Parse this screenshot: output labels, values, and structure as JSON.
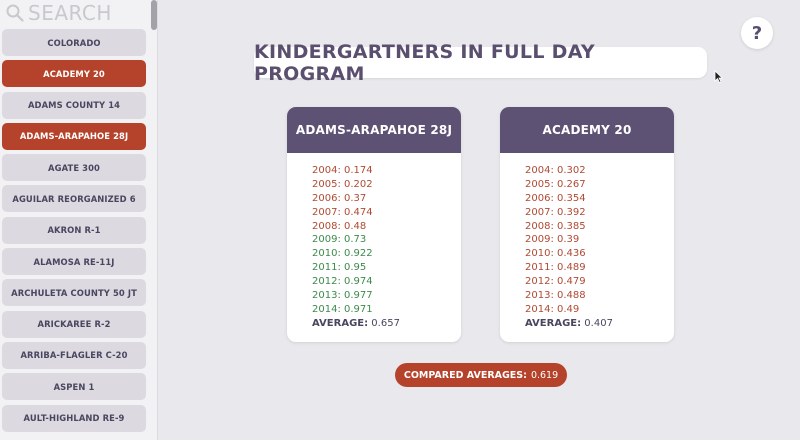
{
  "search": {
    "placeholder": "SEARCH"
  },
  "sidebar": {
    "items": [
      {
        "label": "COLORADO",
        "selected": false
      },
      {
        "label": "ACADEMY 20",
        "selected": true
      },
      {
        "label": "ADAMS COUNTY 14",
        "selected": false
      },
      {
        "label": "ADAMS-ARAPAHOE 28J",
        "selected": true
      },
      {
        "label": "AGATE 300",
        "selected": false
      },
      {
        "label": "AGUILAR REORGANIZED 6",
        "selected": false
      },
      {
        "label": "AKRON R-1",
        "selected": false
      },
      {
        "label": "ALAMOSA RE-11J",
        "selected": false
      },
      {
        "label": "ARCHULETA COUNTY 50 JT",
        "selected": false
      },
      {
        "label": "ARICKAREE R-2",
        "selected": false
      },
      {
        "label": "ARRIBA-FLAGLER C-20",
        "selected": false
      },
      {
        "label": "ASPEN 1",
        "selected": false
      },
      {
        "label": "AULT-HIGHLAND RE-9",
        "selected": false
      }
    ]
  },
  "help": {
    "label": "?"
  },
  "title": "KINDERGARTNERS IN FULL DAY PROGRAM",
  "colors": {
    "accent": "#b5432b",
    "header": "#5e5274",
    "above": "#3d8a4b",
    "below": "#b04a33"
  },
  "cards": [
    {
      "name": "ADAMS-ARAPAHOE 28J",
      "rows": [
        {
          "text": "2004: 0.174",
          "status": "red"
        },
        {
          "text": "2005: 0.202",
          "status": "red"
        },
        {
          "text": "2006: 0.37",
          "status": "red"
        },
        {
          "text": "2007: 0.474",
          "status": "red"
        },
        {
          "text": "2008: 0.48",
          "status": "red"
        },
        {
          "text": "2009: 0.73",
          "status": "green"
        },
        {
          "text": "2010: 0.922",
          "status": "green"
        },
        {
          "text": "2011: 0.95",
          "status": "green"
        },
        {
          "text": "2012: 0.974",
          "status": "green"
        },
        {
          "text": "2013: 0.977",
          "status": "green"
        },
        {
          "text": "2014: 0.971",
          "status": "green"
        }
      ],
      "average_label": "AVERAGE:",
      "average_value": "0.657"
    },
    {
      "name": "ACADEMY 20",
      "rows": [
        {
          "text": "2004: 0.302",
          "status": "red"
        },
        {
          "text": "2005: 0.267",
          "status": "red"
        },
        {
          "text": "2006: 0.354",
          "status": "red"
        },
        {
          "text": "2007: 0.392",
          "status": "red"
        },
        {
          "text": "2008: 0.385",
          "status": "red"
        },
        {
          "text": "2009: 0.39",
          "status": "red"
        },
        {
          "text": "2010: 0.436",
          "status": "red"
        },
        {
          "text": "2011: 0.489",
          "status": "red"
        },
        {
          "text": "2012: 0.479",
          "status": "red"
        },
        {
          "text": "2013: 0.488",
          "status": "red"
        },
        {
          "text": "2014: 0.49",
          "status": "red"
        }
      ],
      "average_label": "AVERAGE:",
      "average_value": "0.407"
    }
  ],
  "compared": {
    "label": "COMPARED AVERAGES:",
    "value": "0.619"
  }
}
